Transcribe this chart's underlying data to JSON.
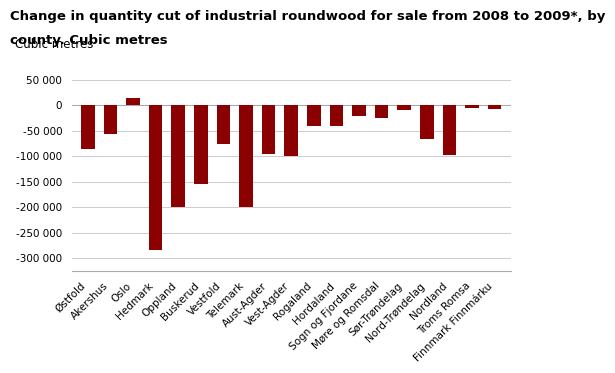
{
  "title_line1": "Change in quantity cut of industrial roundwood for sale from 2008 to 2009*, by",
  "title_line2": "county. Cubic metres",
  "ylabel_above": "Cubic metres",
  "categories": [
    "Østfold",
    "Akershus",
    "Oslo",
    "Hedmark",
    "Oppland",
    "Buskerud",
    "Vestfold",
    "Telemark",
    "Aust-Agder",
    "Vest-Agder",
    "Rogaland",
    "Hordaland",
    "Sogn og Fjordane",
    "Møre og Romsdal",
    "Sør-Trøndelag",
    "Nord-Trøndelag",
    "Nordland",
    "Troms Romsa",
    "Finnmark Finnmárku"
  ],
  "values": [
    -85000,
    -57000,
    15000,
    -283000,
    -200000,
    -155000,
    -75000,
    -200000,
    -95000,
    -100000,
    -40000,
    -40000,
    -20000,
    -25000,
    -10000,
    -67000,
    -98000,
    -5000,
    -8000
  ],
  "bar_color": "#8b0000",
  "background_color": "#ffffff",
  "ylim": [
    -325000,
    75000
  ],
  "yticks": [
    -300000,
    -250000,
    -200000,
    -150000,
    -100000,
    -50000,
    0,
    50000
  ],
  "ytick_labels": [
    "-300 000",
    "-250 000",
    "-200 000",
    "-150 000",
    "-100 000",
    "-50 000",
    "0",
    "50 000"
  ],
  "grid_color": "#cccccc",
  "title_fontsize": 9.5,
  "label_fontsize": 8.5,
  "tick_fontsize": 7.5
}
